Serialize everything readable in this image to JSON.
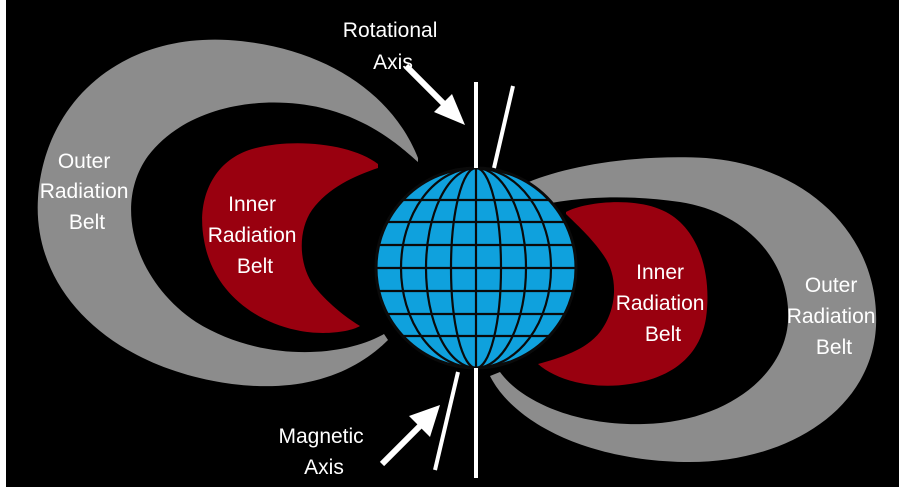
{
  "labels": {
    "rotational_axis": [
      "Rotational",
      "Axis"
    ],
    "magnetic_axis": [
      "Magnetic",
      "Axis"
    ],
    "outer_belt_left": [
      "Outer",
      "Radiation",
      "Belt"
    ],
    "inner_belt_left": [
      "Inner",
      "Radiation",
      "Belt"
    ],
    "inner_belt_right": [
      "Inner",
      "Radiation",
      "Belt"
    ],
    "outer_belt_right": [
      "Outer",
      "Radiation",
      "Belt"
    ]
  },
  "colors": {
    "background": "#000000",
    "outer_belt": "#8c8c8c",
    "inner_belt": "#99000f",
    "earth": "#0fa1dd",
    "grid": "#0a0a0a",
    "axis": "#ffffff",
    "text": "#ffffff"
  }
}
